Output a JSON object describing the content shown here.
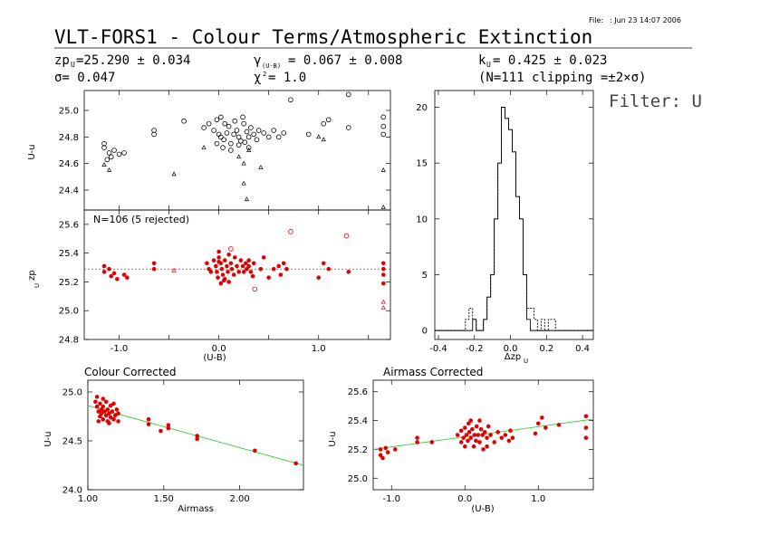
{
  "header": {
    "file_label": "File:",
    "file_date": ": Jun 23 14:07 2006",
    "title": "VLT-FORS1 - Colour Terms/Atmospheric Extinction",
    "zp": "zp",
    "zp_sub": "U",
    "zp_value": "=25.290 ± 0.034",
    "sigma": "σ= 0.047",
    "gamma": "γ",
    "gamma_sub": "(U-B)",
    "gamma_value": "= 0.067 ± 0.008",
    "chi": "χ",
    "chi_sup": "2",
    "chi_value": "= 1.0",
    "k": "k",
    "k_sub": "U",
    "k_value": "= 0.425 ± 0.023",
    "clip": "(N=111 clipping =±2×σ)",
    "filter": "Filter: U"
  },
  "chart_data": [
    {
      "id": "top-left",
      "type": "scatter",
      "ylabel": "U-u",
      "xlim": [
        -1.35,
        1.72
      ],
      "ylim": [
        24.25,
        25.15
      ],
      "yticks": [
        24.4,
        24.6,
        24.8,
        25.0
      ],
      "circles": [
        [
          -1.15,
          24.75
        ],
        [
          -1.15,
          24.72
        ],
        [
          -1.05,
          24.7
        ],
        [
          -1.1,
          24.68
        ],
        [
          -1.08,
          24.65
        ],
        [
          -1.12,
          24.63
        ],
        [
          -1.0,
          24.67
        ],
        [
          -0.95,
          24.68
        ],
        [
          -0.65,
          24.85
        ],
        [
          -0.65,
          24.82
        ],
        [
          -0.35,
          24.92
        ],
        [
          -0.15,
          24.87
        ],
        [
          -0.1,
          24.9
        ],
        [
          -0.05,
          24.85
        ],
        [
          -0.02,
          24.93
        ],
        [
          0.0,
          24.82
        ],
        [
          0.02,
          24.8
        ],
        [
          0.05,
          24.78
        ],
        [
          0.08,
          24.83
        ],
        [
          0.1,
          24.88
        ],
        [
          0.12,
          24.75
        ],
        [
          0.15,
          24.82
        ],
        [
          0.18,
          24.85
        ],
        [
          0.2,
          24.8
        ],
        [
          0.22,
          24.77
        ],
        [
          0.25,
          24.9
        ],
        [
          0.28,
          24.84
        ],
        [
          0.3,
          24.8
        ],
        [
          0.32,
          24.87
        ],
        [
          0.35,
          24.82
        ],
        [
          0.38,
          24.78
        ],
        [
          0.4,
          24.85
        ],
        [
          0.45,
          24.83
        ],
        [
          0.5,
          24.8
        ],
        [
          0.55,
          24.85
        ],
        [
          0.6,
          24.8
        ],
        [
          0.65,
          24.83
        ],
        [
          0.72,
          25.08
        ],
        [
          0.9,
          24.82
        ],
        [
          1.05,
          24.9
        ],
        [
          1.1,
          24.93
        ],
        [
          1.3,
          24.87
        ],
        [
          1.3,
          25.12
        ],
        [
          1.65,
          24.95
        ],
        [
          1.65,
          24.88
        ],
        [
          1.65,
          24.82
        ],
        [
          -0.02,
          24.75
        ],
        [
          0.04,
          24.72
        ],
        [
          0.12,
          24.7
        ],
        [
          0.2,
          24.74
        ],
        [
          0.26,
          24.76
        ],
        [
          0.3,
          24.72
        ],
        [
          0.02,
          24.95
        ],
        [
          0.06,
          24.9
        ],
        [
          0.24,
          24.95
        ],
        [
          0.16,
          24.92
        ]
      ],
      "triangles": [
        [
          -1.15,
          24.59
        ],
        [
          -1.1,
          24.55
        ],
        [
          -0.45,
          24.52
        ],
        [
          -0.15,
          24.72
        ],
        [
          0.2,
          24.65
        ],
        [
          0.25,
          24.6
        ],
        [
          0.25,
          24.45
        ],
        [
          0.28,
          24.33
        ],
        [
          0.3,
          24.7
        ],
        [
          0.42,
          24.57
        ],
        [
          1.0,
          24.8
        ],
        [
          1.05,
          24.78
        ],
        [
          1.65,
          24.55
        ],
        [
          1.65,
          24.27
        ]
      ]
    },
    {
      "id": "mid-left",
      "type": "scatter",
      "ylabel": "zp",
      "ylabel_sub": "U",
      "xlabel": "(U-B)",
      "note": "N=106 (5 rejected)",
      "xlim": [
        -1.35,
        1.72
      ],
      "ylim": [
        24.8,
        25.7
      ],
      "yticks": [
        24.8,
        25.0,
        25.2,
        25.4,
        25.6
      ],
      "xticks": [
        -1.0,
        0.0,
        1.0
      ],
      "xticklabels": [
        "-1.0",
        "0.0",
        "1.0"
      ],
      "zp_line": 25.29,
      "dots": [
        [
          -1.15,
          25.31
        ],
        [
          -1.15,
          25.27
        ],
        [
          -1.1,
          25.29
        ],
        [
          -1.08,
          25.24
        ],
        [
          -1.05,
          25.26
        ],
        [
          -1.02,
          25.22
        ],
        [
          -0.95,
          25.25
        ],
        [
          -0.92,
          25.23
        ],
        [
          -0.65,
          25.33
        ],
        [
          -0.65,
          25.29
        ],
        [
          -0.12,
          25.33
        ],
        [
          -0.1,
          25.29
        ],
        [
          -0.08,
          25.27
        ],
        [
          -0.05,
          25.35
        ],
        [
          -0.03,
          25.31
        ],
        [
          -0.02,
          25.27
        ],
        [
          -0.01,
          25.23
        ],
        [
          0.0,
          25.41
        ],
        [
          0.0,
          25.37
        ],
        [
          0.02,
          25.33
        ],
        [
          0.03,
          25.29
        ],
        [
          0.04,
          25.25
        ],
        [
          0.05,
          25.21
        ],
        [
          0.06,
          25.35
        ],
        [
          0.08,
          25.31
        ],
        [
          0.09,
          25.27
        ],
        [
          0.1,
          25.39
        ],
        [
          0.12,
          25.33
        ],
        [
          0.13,
          25.29
        ],
        [
          0.15,
          25.25
        ],
        [
          0.16,
          25.37
        ],
        [
          0.18,
          25.31
        ],
        [
          0.2,
          25.27
        ],
        [
          0.22,
          25.35
        ],
        [
          0.24,
          25.31
        ],
        [
          0.25,
          25.27
        ],
        [
          0.27,
          25.33
        ],
        [
          0.28,
          25.29
        ],
        [
          0.3,
          25.31
        ],
        [
          0.32,
          25.27
        ],
        [
          0.35,
          25.33
        ],
        [
          0.42,
          25.29
        ],
        [
          0.45,
          25.37
        ],
        [
          0.5,
          25.23
        ],
        [
          0.55,
          25.29
        ],
        [
          0.6,
          25.31
        ],
        [
          0.62,
          25.25
        ],
        [
          0.65,
          25.33
        ],
        [
          0.68,
          25.29
        ],
        [
          1.0,
          25.23
        ],
        [
          1.05,
          25.33
        ],
        [
          1.1,
          25.29
        ],
        [
          1.3,
          25.27
        ],
        [
          1.65,
          25.33
        ],
        [
          1.65,
          25.29
        ],
        [
          1.65,
          25.25
        ],
        [
          1.65,
          25.19
        ],
        [
          0.02,
          25.19
        ],
        [
          0.06,
          25.22
        ],
        [
          0.1,
          25.2
        ],
        [
          0.3,
          25.35
        ],
        [
          0.34,
          25.24
        ],
        [
          0.0,
          25.34
        ]
      ],
      "rejected_circles": [
        [
          0.72,
          25.55
        ],
        [
          1.28,
          25.52
        ],
        [
          0.36,
          25.15
        ],
        [
          0.12,
          25.43
        ]
      ],
      "rejected_triangles": [
        [
          -0.45,
          25.28
        ],
        [
          1.65,
          25.06
        ],
        [
          1.65,
          25.02
        ]
      ]
    },
    {
      "id": "histogram",
      "type": "histogram",
      "xlabel": "Δzp",
      "xlabel_sub": "U",
      "xlim": [
        -0.42,
        0.46
      ],
      "ylim": [
        -0.8,
        21.5
      ],
      "yticks": [
        0,
        5,
        10,
        15,
        20
      ],
      "xticks": [
        -0.4,
        -0.2,
        0.0,
        0.2,
        0.4
      ],
      "xticklabels": [
        "-0.4",
        "-0.2",
        "0.0",
        "0.2",
        "0.4"
      ],
      "bin_edges": [
        -0.42,
        -0.25,
        -0.23,
        -0.21,
        -0.19,
        -0.17,
        -0.15,
        -0.13,
        -0.11,
        -0.09,
        -0.07,
        -0.05,
        -0.03,
        -0.01,
        0.01,
        0.03,
        0.05,
        0.07,
        0.09,
        0.11,
        0.13,
        0.15,
        0.17,
        0.19,
        0.21,
        0.23,
        0.25,
        0.27,
        0.29,
        0.46
      ],
      "dashed_counts": [
        0,
        1,
        2,
        1,
        0,
        0,
        1,
        3,
        5,
        10,
        15,
        20,
        19,
        18,
        16,
        12,
        10,
        5,
        2,
        2,
        1,
        0,
        1,
        0,
        1,
        1,
        0,
        0,
        0
      ],
      "solid_counts": [
        0,
        0,
        0,
        1,
        0,
        0,
        1,
        3,
        5,
        10,
        15,
        20,
        19,
        18,
        16,
        12,
        10,
        5,
        1,
        0,
        0,
        0,
        0,
        0,
        0,
        0,
        0,
        0,
        0
      ]
    },
    {
      "id": "colour-corrected",
      "type": "scatter",
      "title": "Colour Corrected",
      "xlabel": "Airmass",
      "ylabel": "U-u",
      "xlim": [
        1.0,
        2.42
      ],
      "ylim": [
        24.0,
        25.12
      ],
      "yticks": [
        24.0,
        24.5,
        25.0
      ],
      "yticklabels": [
        "24.0",
        "24.5",
        "25.0"
      ],
      "xticks": [
        1.0,
        1.5,
        2.0
      ],
      "xticklabels": [
        "1.00",
        "1.50",
        "2.00"
      ],
      "fit": [
        [
          1.0,
          24.86
        ],
        [
          2.42,
          24.25
        ]
      ],
      "dots": [
        [
          1.05,
          24.9
        ],
        [
          1.06,
          24.85
        ],
        [
          1.06,
          24.95
        ],
        [
          1.07,
          24.8
        ],
        [
          1.08,
          24.88
        ],
        [
          1.08,
          24.75
        ],
        [
          1.09,
          24.82
        ],
        [
          1.09,
          24.78
        ],
        [
          1.1,
          24.85
        ],
        [
          1.1,
          24.72
        ],
        [
          1.11,
          24.8
        ],
        [
          1.12,
          24.76
        ],
        [
          1.12,
          24.9
        ],
        [
          1.13,
          24.7
        ],
        [
          1.13,
          24.82
        ],
        [
          1.14,
          24.78
        ],
        [
          1.15,
          24.74
        ],
        [
          1.15,
          24.86
        ],
        [
          1.16,
          24.8
        ],
        [
          1.17,
          24.72
        ],
        [
          1.18,
          24.76
        ],
        [
          1.19,
          24.82
        ],
        [
          1.2,
          24.7
        ],
        [
          1.2,
          24.78
        ],
        [
          1.07,
          24.7
        ],
        [
          1.1,
          24.93
        ],
        [
          1.14,
          24.68
        ],
        [
          1.17,
          24.88
        ],
        [
          1.4,
          24.72
        ],
        [
          1.4,
          24.67
        ],
        [
          1.48,
          24.6
        ],
        [
          1.53,
          24.66
        ],
        [
          1.53,
          24.63
        ],
        [
          1.72,
          24.55
        ],
        [
          1.72,
          24.52
        ],
        [
          2.1,
          24.4
        ],
        [
          2.37,
          24.27
        ]
      ]
    },
    {
      "id": "airmass-corrected",
      "type": "scatter",
      "title": "Airmass Corrected",
      "xlabel": "(U-B)",
      "ylabel": "U-u",
      "xlim": [
        -1.25,
        1.75
      ],
      "ylim": [
        24.92,
        25.68
      ],
      "yticks": [
        25.0,
        25.2,
        25.4,
        25.6
      ],
      "yticklabels": [
        "25.0",
        "25.2",
        "25.4",
        "25.6"
      ],
      "xticks": [
        -1.0,
        0.0,
        1.0
      ],
      "xticklabels": [
        "-1.0",
        "0.0",
        "1.0"
      ],
      "fit": [
        [
          -1.25,
          25.2
        ],
        [
          1.75,
          25.41
        ]
      ],
      "dots": [
        [
          -1.15,
          25.2
        ],
        [
          -1.15,
          25.16
        ],
        [
          -1.12,
          25.14
        ],
        [
          -1.08,
          25.21
        ],
        [
          -1.05,
          25.18
        ],
        [
          -0.95,
          25.2
        ],
        [
          -0.65,
          25.28
        ],
        [
          -0.65,
          25.25
        ],
        [
          -0.45,
          25.25
        ],
        [
          -0.1,
          25.3
        ],
        [
          -0.05,
          25.33
        ],
        [
          -0.05,
          25.25
        ],
        [
          -0.02,
          25.28
        ],
        [
          0.0,
          25.35
        ],
        [
          0.0,
          25.22
        ],
        [
          0.02,
          25.3
        ],
        [
          0.04,
          25.26
        ],
        [
          0.05,
          25.38
        ],
        [
          0.06,
          25.32
        ],
        [
          0.08,
          25.28
        ],
        [
          0.1,
          25.34
        ],
        [
          0.12,
          25.22
        ],
        [
          0.13,
          25.3
        ],
        [
          0.15,
          25.26
        ],
        [
          0.16,
          25.36
        ],
        [
          0.18,
          25.3
        ],
        [
          0.2,
          25.25
        ],
        [
          0.22,
          25.34
        ],
        [
          0.24,
          25.3
        ],
        [
          0.25,
          25.2
        ],
        [
          0.27,
          25.32
        ],
        [
          0.3,
          25.28
        ],
        [
          0.32,
          25.36
        ],
        [
          0.35,
          25.3
        ],
        [
          0.4,
          25.25
        ],
        [
          0.45,
          25.32
        ],
        [
          0.5,
          25.28
        ],
        [
          0.55,
          25.3
        ],
        [
          0.6,
          25.26
        ],
        [
          0.62,
          25.33
        ],
        [
          0.65,
          25.28
        ],
        [
          0.96,
          25.31
        ],
        [
          1.0,
          25.38
        ],
        [
          1.05,
          25.42
        ],
        [
          1.1,
          25.35
        ],
        [
          1.28,
          25.37
        ],
        [
          1.65,
          25.43
        ],
        [
          1.65,
          25.35
        ],
        [
          1.65,
          25.28
        ],
        [
          0.08,
          25.4
        ],
        [
          0.2,
          25.4
        ],
        [
          0.3,
          25.22
        ]
      ]
    }
  ]
}
